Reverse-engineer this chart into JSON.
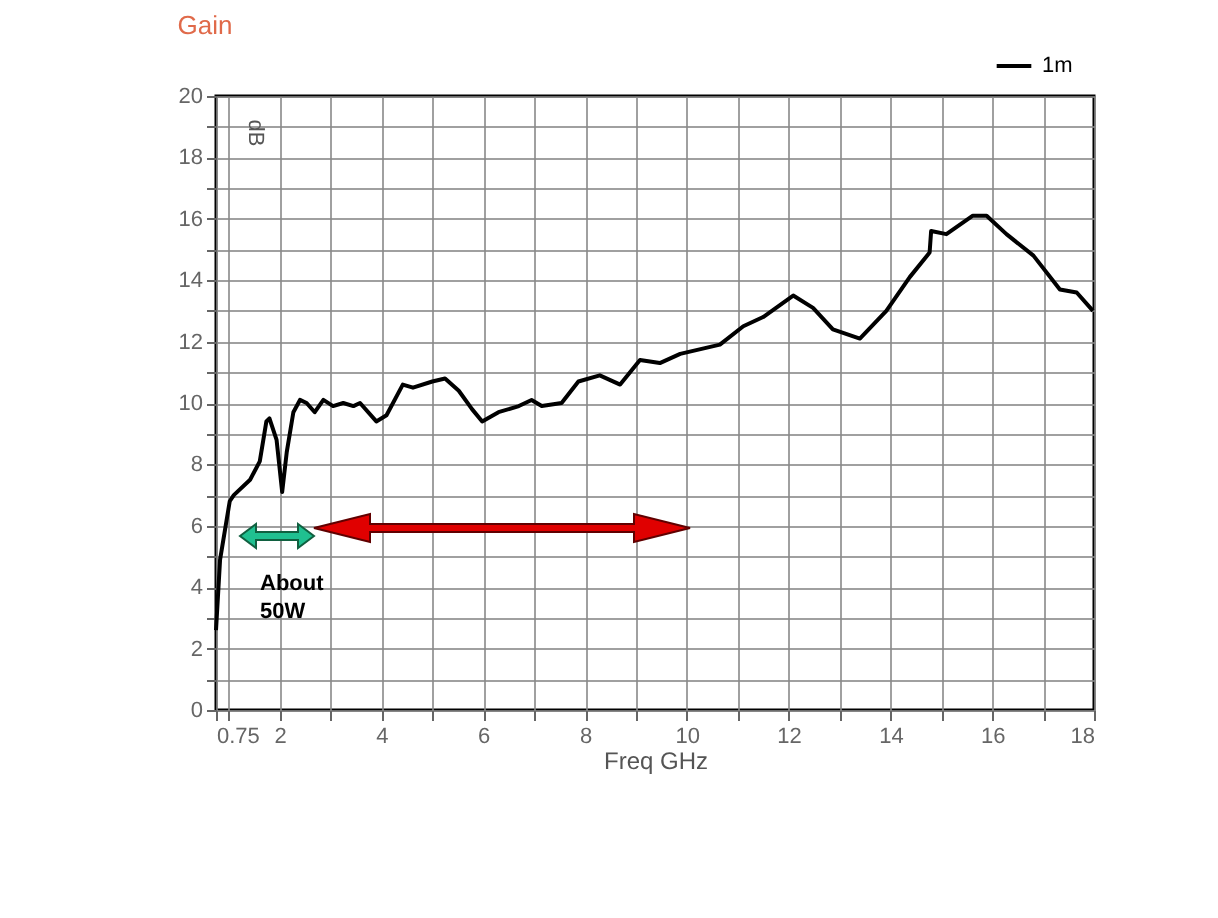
{
  "chart_data": {
    "type": "line",
    "title": "Gain",
    "xlabel": "Freq GHz",
    "ylabel": "dB",
    "x": [
      0.75,
      0.83,
      1.02,
      1.1,
      1.42,
      1.61,
      1.74,
      1.8,
      1.94,
      2.05,
      2.14,
      2.27,
      2.4,
      2.53,
      2.69,
      2.86,
      3.05,
      3.25,
      3.45,
      3.58,
      3.9,
      4.1,
      4.42,
      4.62,
      5.0,
      5.25,
      5.52,
      5.78,
      5.98,
      6.3,
      6.7,
      6.95,
      7.15,
      7.54,
      7.87,
      8.29,
      8.69,
      9.08,
      9.47,
      9.87,
      10.65,
      11.11,
      11.5,
      12.09,
      12.48,
      12.87,
      13.4,
      13.92,
      14.38,
      14.77,
      14.8,
      15.1,
      15.62,
      15.89,
      16.28,
      16.81,
      17.33,
      17.66,
      17.98
    ],
    "series": [
      {
        "name": "1m",
        "color": "#000000",
        "values": [
          2.6,
          4.9,
          6.8,
          7.0,
          7.5,
          8.1,
          9.4,
          9.5,
          8.8,
          7.1,
          8.4,
          9.7,
          10.1,
          10.0,
          9.7,
          10.1,
          9.9,
          10.0,
          9.9,
          10.0,
          9.4,
          9.6,
          10.6,
          10.5,
          10.7,
          10.8,
          10.4,
          9.8,
          9.4,
          9.7,
          9.9,
          10.1,
          9.9,
          10.0,
          10.7,
          10.9,
          10.6,
          11.4,
          11.3,
          11.6,
          11.9,
          12.5,
          12.8,
          13.5,
          13.1,
          12.4,
          12.1,
          13.0,
          14.1,
          14.9,
          15.6,
          15.5,
          16.1,
          16.1,
          15.5,
          14.8,
          13.7,
          13.6,
          13.0
        ]
      }
    ],
    "xlim": [
      0.75,
      18
    ],
    "xticks": [
      0.75,
      {
        "value": 1,
        "label": null
      },
      2,
      {
        "value": 3,
        "label": null
      },
      4,
      {
        "value": 5,
        "label": null
      },
      6,
      {
        "value": 7,
        "label": null
      },
      8,
      {
        "value": 9,
        "label": null
      },
      10,
      {
        "value": 11,
        "label": null
      },
      12,
      {
        "value": 13,
        "label": null
      },
      14,
      {
        "value": 15,
        "label": null
      },
      16,
      {
        "value": 17,
        "label": null
      },
      18
    ],
    "ylim": [
      0,
      20
    ],
    "yticks": [
      0,
      {
        "value": 1,
        "label": null
      },
      2,
      {
        "value": 3,
        "label": null
      },
      4,
      {
        "value": 5,
        "label": null
      },
      6,
      {
        "value": 7,
        "label": null
      },
      8,
      {
        "value": 9,
        "label": null
      },
      10,
      {
        "value": 11,
        "label": null
      },
      12,
      {
        "value": 13,
        "label": null
      },
      14,
      {
        "value": 15,
        "label": null
      },
      16,
      {
        "value": 17,
        "label": null
      },
      18,
      {
        "value": 19,
        "label": null
      },
      20
    ],
    "grid": true,
    "legend": "top right",
    "annotations": [
      "About 50W"
    ]
  }
}
